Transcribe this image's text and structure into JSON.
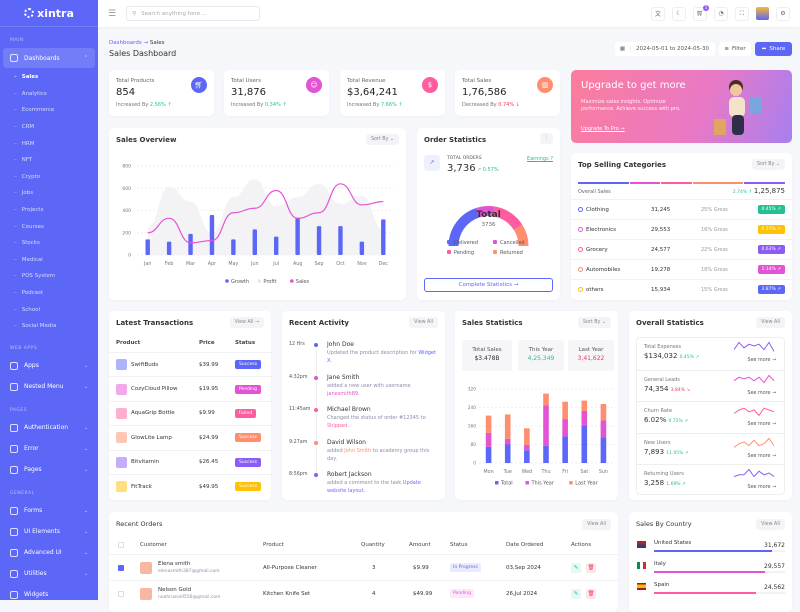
{
  "brand": "xintra",
  "sidebar": {
    "sections": [
      {
        "title": "MAIN"
      },
      {
        "title": "WEB APPS"
      },
      {
        "title": "PAGES"
      },
      {
        "title": "GENERAL"
      }
    ],
    "dashboards": "Dashboards",
    "sub_items": [
      "Sales",
      "Analytics",
      "Ecommerce",
      "CRM",
      "HRM",
      "NFT",
      "Crypto",
      "Jobs",
      "Projects",
      "Courses",
      "Stocks",
      "Medical",
      "POS System",
      "Podcast",
      "School",
      "Social Media"
    ],
    "webapps": [
      {
        "label": "Apps",
        "icon": "apps-icon"
      },
      {
        "label": "Nested Menu",
        "icon": "nested-menu-icon"
      }
    ],
    "pages": [
      {
        "label": "Authentication",
        "icon": "lock-icon"
      },
      {
        "label": "Error",
        "icon": "warning-icon"
      },
      {
        "label": "Pages",
        "icon": "pages-icon"
      }
    ],
    "general": [
      {
        "label": "Forms",
        "icon": "clipboard-icon"
      },
      {
        "label": "UI Elements",
        "icon": "box-icon"
      },
      {
        "label": "Advanced UI",
        "icon": "file-icon"
      },
      {
        "label": "Utilities",
        "icon": "inbox-icon"
      },
      {
        "label": "Widgets",
        "icon": "gift-icon"
      }
    ]
  },
  "header": {
    "search_placeholder": "Search anything here ...",
    "cart_count": "5"
  },
  "breadcrumb": {
    "parent": "Dashboards",
    "current": "Sales"
  },
  "page_title": "Sales Dashboard",
  "toolbar": {
    "date_range": "2024-05-01 to 2024-05-30",
    "filter": "Filter",
    "share": "Share"
  },
  "stats": [
    {
      "label": "Total Products",
      "value": "854",
      "prefix": "Increased By",
      "change": "2.56%",
      "trend": "up",
      "color": "#5c67f7",
      "icon": "cart-icon"
    },
    {
      "label": "Total Users",
      "value": "31,876",
      "prefix": "Increased By",
      "change": "0.34%",
      "trend": "up",
      "color": "#e354d4",
      "icon": "users-icon"
    },
    {
      "label": "Total Revenue",
      "value": "$3,64,241",
      "prefix": "Increased By",
      "change": "7.66%",
      "trend": "up",
      "color": "#ff5d9f",
      "icon": "dollar-icon"
    },
    {
      "label": "Total Sales",
      "value": "1,76,586",
      "prefix": "Decreased By",
      "change": "0.74%",
      "trend": "down",
      "color": "#ff8e6f",
      "icon": "chart-icon"
    }
  ],
  "banner": {
    "title": "Upgrade to get more",
    "text": "Maximize sales insights. Optimize performance. Achieve success with pro.",
    "link": "Upgrade To Pro →"
  },
  "sales_overview": {
    "title": "Sales Overview",
    "sort": "Sort By"
  },
  "order_stats": {
    "title": "Order Statistics",
    "label": "TOTAL ORDERS",
    "value": "3,736",
    "change": "0.57%",
    "earnings": "Earnings ?",
    "center_label": "Total",
    "center_value": "3736",
    "button": "Complete Statistics →",
    "legend": [
      {
        "name": "Delivered",
        "color": "#5c67f7"
      },
      {
        "name": "Cancelled",
        "color": "#e354d4"
      },
      {
        "name": "Pending",
        "color": "#ff5d9f"
      },
      {
        "name": "Returned",
        "color": "#ff8e6f"
      }
    ],
    "shares": [
      40,
      15,
      27,
      18
    ]
  },
  "top_selling": {
    "title": "Top Selling Categories",
    "sort": "Sort By",
    "overall_label": "Overall Sales",
    "overall_change": "2.74%",
    "overall_value": "1,25,875",
    "rows": [
      {
        "name": "Clothing",
        "value": "31,245",
        "gross": "25% Gross",
        "change": "0.45%",
        "color": "#26bf94",
        "dot": "#5c67f7"
      },
      {
        "name": "Electronics",
        "value": "29,553",
        "gross": "16% Gross",
        "change": "0.27%",
        "color": "#ffc102",
        "dot": "#e354d4"
      },
      {
        "name": "Grocery",
        "value": "24,577",
        "gross": "22% Gross",
        "change": "0.63%",
        "color": "#8b5cf6",
        "dot": "#ff5d9f"
      },
      {
        "name": "Automobiles",
        "value": "19,278",
        "gross": "18% Gross",
        "change": "1.14%",
        "color": "#e354d4",
        "dot": "#ff8e6f"
      },
      {
        "name": "others",
        "value": "15,934",
        "gross": "15% Gross",
        "change": "3.87%",
        "color": "#5c67f7",
        "dot": "#ffc102"
      }
    ]
  },
  "transactions": {
    "title": "Latest Transactions",
    "view_all": "View All →",
    "headers": [
      "Product",
      "Price",
      "Status"
    ],
    "rows": [
      {
        "product": "SwiftBuds",
        "price": "$39.99",
        "status": "Success",
        "color": "#5c67f7"
      },
      {
        "product": "CozyCloud Pillow",
        "price": "$19.95",
        "status": "Pending",
        "color": "#e354d4"
      },
      {
        "product": "AquaGrip Bottle",
        "price": "$9.99",
        "status": "Failed",
        "color": "#ff5d9f"
      },
      {
        "product": "GlowLite Lamp",
        "price": "$24.99",
        "status": "Success",
        "color": "#ff8e6f"
      },
      {
        "product": "Bitvitamin",
        "price": "$26.45",
        "status": "Success",
        "color": "#8b5cf6"
      },
      {
        "product": "FitTrack",
        "price": "$49.95",
        "status": "Success",
        "color": "#ffc102"
      }
    ]
  },
  "activity": {
    "title": "Recent Activity",
    "view_all": "View All",
    "items": [
      {
        "time": "12 Hrs",
        "name": "John Doe",
        "pre": "Updated the product description for ",
        "hl": "Widget X.",
        "post": "",
        "dot": "#5c67f7",
        "hc": "#5c67f7"
      },
      {
        "time": "4:32pm",
        "name": "Jane Smith",
        "pre": "added a new user with username ",
        "hl": "janesmith89.",
        "post": "",
        "dot": "#e354d4",
        "hc": "#e354d4"
      },
      {
        "time": "11:45am",
        "name": "Michael Brown",
        "pre": "Changed the status of order #12345 to ",
        "hl": "Shipped.",
        "post": "",
        "dot": "#ff5d9f",
        "hc": "#ff5d9f"
      },
      {
        "time": "9:27am",
        "name": "David Wilson",
        "pre": "added ",
        "hl": "John Smith",
        "post": " to academy group this day.",
        "dot": "#ff8e6f",
        "hc": "#ff8e6f"
      },
      {
        "time": "8:56pm",
        "name": "Robert Jackson",
        "pre": "added a comment to the task ",
        "hl": "Update website layout.",
        "post": "",
        "dot": "#8b5cf6",
        "hc": "#8b5cf6"
      }
    ]
  },
  "sales_stats": {
    "title": "Sales Statistics",
    "sort": "Sort By",
    "boxes": [
      {
        "label": "Total Sales",
        "value": "$3.478B",
        "color": "#333"
      },
      {
        "label": "This Year",
        "value": "4,25,349",
        "color": "#26bf94"
      },
      {
        "label": "Last Year",
        "value": "3,41,622",
        "color": "#f5365c"
      }
    ]
  },
  "overall": {
    "title": "Overall Statistics",
    "view_all": "View All",
    "see_more": "See more →",
    "items": [
      {
        "label": "Total Expenses",
        "value": "$134,032",
        "change": "0.45%",
        "trend": "up",
        "color": "#8b5cf6",
        "spark": [
          3,
          7,
          4,
          6,
          5,
          6,
          3,
          7,
          2
        ]
      },
      {
        "label": "General Leads",
        "value": "74,354",
        "change": "3.84%",
        "trend": "down",
        "color": "#e354d4",
        "spark": [
          4,
          6,
          5,
          6,
          4,
          6,
          3,
          7,
          4
        ]
      },
      {
        "label": "Churn Rate",
        "value": "6.02%",
        "change": "0.72%",
        "trend": "up",
        "color": "#ff5d9f",
        "spark": [
          3,
          5,
          6,
          4,
          5,
          2,
          6,
          5,
          4
        ]
      },
      {
        "label": "New Users",
        "value": "7,893",
        "change": "11.05%",
        "trend": "up",
        "color": "#ff8e6f",
        "spark": [
          2,
          4,
          5,
          3,
          6,
          3,
          4,
          7,
          3
        ]
      },
      {
        "label": "Returning Users",
        "value": "3,258",
        "change": "1.69%",
        "trend": "up",
        "color": "#8b5cf6",
        "spark": [
          3,
          4,
          4,
          7,
          3,
          6,
          4,
          5,
          3
        ]
      }
    ]
  },
  "orders": {
    "title": "Recent Orders",
    "view_all": "View All",
    "headers": [
      "Customer",
      "Product",
      "Quantity",
      "Amount",
      "Status",
      "Date Ordered",
      "Actions"
    ],
    "rows": [
      {
        "name": "Elena smith",
        "email": "elenasmith387@gmail.com",
        "product": "All-Purpose Cleaner",
        "qty": "3",
        "amount": "$9.99",
        "status": "In Progress",
        "status_color": "#5c67f7",
        "date": "03,Sep 2024",
        "checked": true
      },
      {
        "name": "Nelson Gold",
        "email": "noahrussell556@gmail.com",
        "product": "Kitchen Knife Set",
        "qty": "4",
        "amount": "$49.99",
        "status": "Pending",
        "status_color": "#e354d4",
        "date": "26,Jul 2024",
        "checked": false
      }
    ]
  },
  "countries": {
    "title": "Sales By Country",
    "view_all": "View All",
    "rows": [
      {
        "name": "United States",
        "value": "31,672",
        "pct": 90,
        "color": "#5c67f7"
      },
      {
        "name": "Italy",
        "value": "29,557",
        "pct": 85,
        "color": "#e354d4"
      },
      {
        "name": "Spain",
        "value": "24,562",
        "pct": 78,
        "color": "#ff5d9f"
      }
    ]
  },
  "chart_data": [
    {
      "type": "bar",
      "title": "Sales Overview",
      "categories": [
        "Jan",
        "Feb",
        "Mar",
        "Apr",
        "May",
        "Jun",
        "Jul",
        "Aug",
        "Sep",
        "Oct",
        "Nov",
        "Dec"
      ],
      "ylim": [
        0,
        800
      ],
      "yticks": [
        0,
        200,
        400,
        600,
        800
      ],
      "grid": true,
      "legend": "bottom",
      "series": [
        {
          "name": "Growth",
          "kind": "bar",
          "color": "#5c67f7",
          "values": [
            140,
            120,
            190,
            360,
            140,
            230,
            165,
            335,
            260,
            260,
            120,
            320
          ]
        },
        {
          "name": "Profit",
          "kind": "area",
          "color": "#ececf1",
          "values": [
            250,
            610,
            480,
            200,
            520,
            680,
            440,
            520,
            640,
            460,
            530,
            230
          ]
        },
        {
          "name": "Sales",
          "kind": "line",
          "color": "#e354d4",
          "values": [
            200,
            330,
            110,
            130,
            380,
            420,
            580,
            330,
            380,
            640,
            450,
            480
          ]
        }
      ]
    },
    {
      "type": "bar",
      "stacked": true,
      "title": "Sales Statistics",
      "categories": [
        "Mon",
        "Tue",
        "Wed",
        "Thu",
        "Fri",
        "Sat",
        "Sun"
      ],
      "ylim": [
        0,
        320
      ],
      "yticks": [
        0,
        80,
        160,
        240,
        320
      ],
      "grid": true,
      "legend": "bottom",
      "series": [
        {
          "name": "Total",
          "color": "#5c67f7",
          "values": [
            70,
            80,
            55,
            75,
            115,
            160,
            110
          ]
        },
        {
          "name": "This Year",
          "color": "#e354d4",
          "values": [
            60,
            25,
            23,
            175,
            75,
            65,
            75
          ]
        },
        {
          "name": "Last Year",
          "color": "#ff8e6f",
          "values": [
            75,
            105,
            72,
            50,
            75,
            45,
            70
          ]
        }
      ]
    }
  ]
}
